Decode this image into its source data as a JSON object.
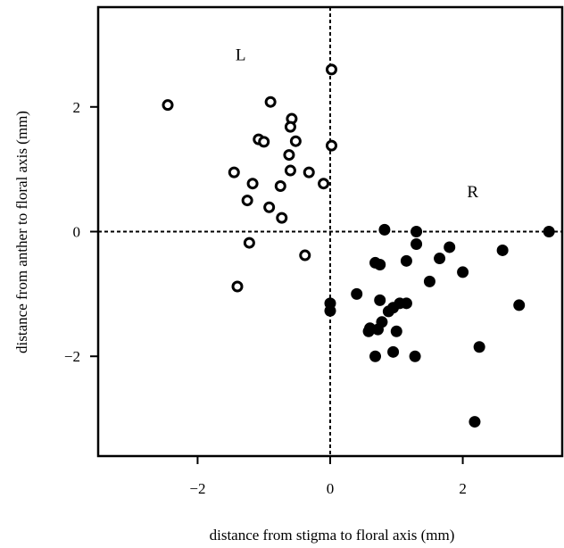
{
  "chart_data": {
    "type": "scatter",
    "xlabel": "distance from stigma to floral axis (mm)",
    "ylabel": "distance from anther to floral axis (mm)",
    "xlim": [
      -3.5,
      3.5
    ],
    "ylim": [
      -3.6,
      3.6
    ],
    "xticks": [
      -2,
      0,
      2
    ],
    "yticks": [
      -2,
      0,
      2
    ],
    "xtick_labels": [
      "−2",
      "0",
      "2"
    ],
    "ytick_labels": [
      "−2",
      "0",
      "2"
    ],
    "reference_lines": {
      "x": 0,
      "y": 0,
      "style": "dashed"
    },
    "grid": false,
    "annotations": [
      {
        "text": "L",
        "x": -1.35,
        "y": 2.75
      },
      {
        "text": "R",
        "x": 2.15,
        "y": 0.55
      }
    ],
    "series": [
      {
        "marker": "open-circle",
        "color": "#000000",
        "points": [
          [
            -2.45,
            2.03
          ],
          [
            -0.9,
            2.08
          ],
          [
            0.02,
            2.6
          ],
          [
            -0.58,
            1.81
          ],
          [
            -0.6,
            1.68
          ],
          [
            -1.08,
            1.48
          ],
          [
            -1.0,
            1.44
          ],
          [
            -0.52,
            1.45
          ],
          [
            0.02,
            1.38
          ],
          [
            -0.62,
            1.23
          ],
          [
            -1.45,
            0.95
          ],
          [
            -0.6,
            0.98
          ],
          [
            -0.32,
            0.95
          ],
          [
            -1.17,
            0.77
          ],
          [
            -0.75,
            0.73
          ],
          [
            -0.1,
            0.77
          ],
          [
            -1.25,
            0.5
          ],
          [
            -0.92,
            0.39
          ],
          [
            -0.73,
            0.22
          ],
          [
            -1.22,
            -0.18
          ],
          [
            -0.38,
            -0.38
          ],
          [
            -1.4,
            -0.88
          ]
        ]
      },
      {
        "marker": "filled-circle",
        "color": "#000000",
        "points": [
          [
            0.82,
            0.03
          ],
          [
            1.3,
            0.0
          ],
          [
            3.3,
            0.0
          ],
          [
            1.3,
            -0.2
          ],
          [
            1.8,
            -0.25
          ],
          [
            2.6,
            -0.3
          ],
          [
            1.15,
            -0.47
          ],
          [
            1.65,
            -0.43
          ],
          [
            0.68,
            -0.5
          ],
          [
            0.75,
            -0.53
          ],
          [
            2.0,
            -0.65
          ],
          [
            1.5,
            -0.8
          ],
          [
            0.4,
            -1.0
          ],
          [
            0.75,
            -1.1
          ],
          [
            1.05,
            -1.15
          ],
          [
            1.15,
            -1.15
          ],
          [
            0.0,
            -1.15
          ],
          [
            2.85,
            -1.18
          ],
          [
            0.95,
            -1.22
          ],
          [
            0.88,
            -1.28
          ],
          [
            0.0,
            -1.27
          ],
          [
            0.78,
            -1.45
          ],
          [
            0.6,
            -1.55
          ],
          [
            0.72,
            -1.57
          ],
          [
            0.58,
            -1.6
          ],
          [
            1.0,
            -1.6
          ],
          [
            2.25,
            -1.85
          ],
          [
            0.95,
            -1.93
          ],
          [
            0.68,
            -2.0
          ],
          [
            1.28,
            -2.0
          ],
          [
            2.18,
            -3.05
          ]
        ]
      }
    ]
  }
}
